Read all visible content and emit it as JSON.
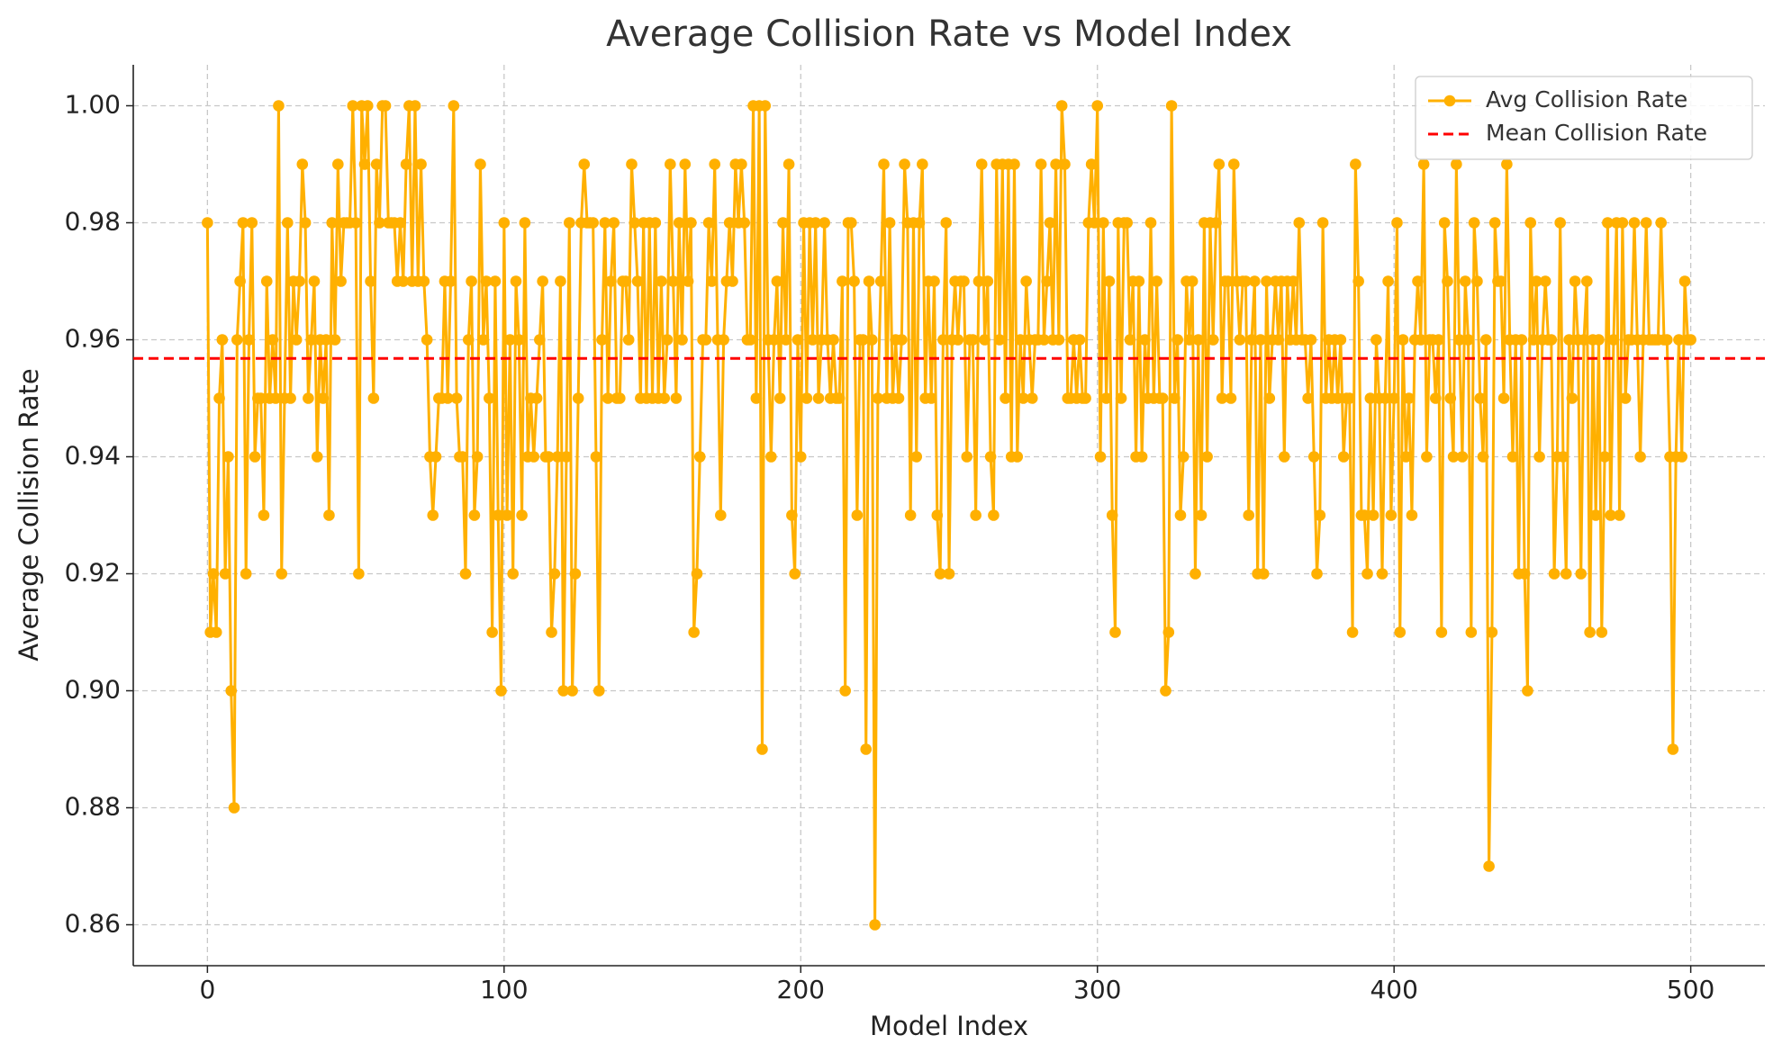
{
  "chart_data": {
    "type": "line",
    "title": "Average Collision Rate vs Model Index",
    "x_label": "Model Index",
    "y_label": "Average Collision Rate",
    "x": [
      0,
      1,
      2,
      3,
      4,
      5,
      6,
      7,
      8,
      9,
      10,
      11,
      12,
      13,
      14,
      15,
      16,
      17,
      18,
      19,
      20,
      21,
      22,
      23,
      24,
      25,
      26,
      27,
      28,
      29,
      30,
      31,
      32,
      33,
      34,
      35,
      36,
      37,
      38,
      39,
      40,
      41,
      42,
      43,
      44,
      45,
      46,
      47,
      48,
      49,
      50,
      51,
      52,
      53,
      54,
      55,
      56,
      57,
      58,
      59,
      60,
      61,
      62,
      63,
      64,
      65,
      66,
      67,
      68,
      69,
      70,
      71,
      72,
      73,
      74,
      75,
      76,
      77,
      78,
      79,
      80,
      81,
      82,
      83,
      84,
      85,
      86,
      87,
      88,
      89,
      90,
      91,
      92,
      93,
      94,
      95,
      96,
      97,
      98,
      99,
      100,
      101,
      102,
      103,
      104,
      105,
      106,
      107,
      108,
      109,
      110,
      111,
      112,
      113,
      114,
      115,
      116,
      117,
      118,
      119,
      120,
      121,
      122,
      123,
      124,
      125,
      126,
      127,
      128,
      129,
      130,
      131,
      132,
      133,
      134,
      135,
      136,
      137,
      138,
      139,
      140,
      141,
      142,
      143,
      144,
      145,
      146,
      147,
      148,
      149,
      150,
      151,
      152,
      153,
      154,
      155,
      156,
      157,
      158,
      159,
      160,
      161,
      162,
      163,
      164,
      165,
      166,
      167,
      168,
      169,
      170,
      171,
      172,
      173,
      174,
      175,
      176,
      177,
      178,
      179,
      180,
      181,
      182,
      183,
      184,
      185,
      186,
      187,
      188,
      189,
      190,
      191,
      192,
      193,
      194,
      195,
      196,
      197,
      198,
      199,
      200,
      201,
      202,
      203,
      204,
      205,
      206,
      207,
      208,
      209,
      210,
      211,
      212,
      213,
      214,
      215,
      216,
      217,
      218,
      219,
      220,
      221,
      222,
      223,
      224,
      225,
      226,
      227,
      228,
      229,
      230,
      231,
      232,
      233,
      234,
      235,
      236,
      237,
      238,
      239,
      240,
      241,
      242,
      243,
      244,
      245,
      246,
      247,
      248,
      249,
      250,
      251,
      252,
      253,
      254,
      255,
      256,
      257,
      258,
      259,
      260,
      261,
      262,
      263,
      264,
      265,
      266,
      267,
      268,
      269,
      270,
      271,
      272,
      273,
      274,
      275,
      276,
      277,
      278,
      279,
      280,
      281,
      282,
      283,
      284,
      285,
      286,
      287,
      288,
      289,
      290,
      291,
      292,
      293,
      294,
      295,
      296,
      297,
      298,
      299,
      300,
      301,
      302,
      303,
      304,
      305,
      306,
      307,
      308,
      309,
      310,
      311,
      312,
      313,
      314,
      315,
      316,
      317,
      318,
      319,
      320,
      321,
      322,
      323,
      324,
      325,
      326,
      327,
      328,
      329,
      330,
      331,
      332,
      333,
      334,
      335,
      336,
      337,
      338,
      339,
      340,
      341,
      342,
      343,
      344,
      345,
      346,
      347,
      348,
      349,
      350,
      351,
      352,
      353,
      354,
      355,
      356,
      357,
      358,
      359,
      360,
      361,
      362,
      363,
      364,
      365,
      366,
      367,
      368,
      369,
      370,
      371,
      372,
      373,
      374,
      375,
      376,
      377,
      378,
      379,
      380,
      381,
      382,
      383,
      384,
      385,
      386,
      387,
      388,
      389,
      390,
      391,
      392,
      393,
      394,
      395,
      396,
      397,
      398,
      399,
      400,
      401,
      402,
      403,
      404,
      405,
      406,
      407,
      408,
      409,
      410,
      411,
      412,
      413,
      414,
      415,
      416,
      417,
      418,
      419,
      420,
      421,
      422,
      423,
      424,
      425,
      426,
      427,
      428,
      429,
      430,
      431,
      432,
      433,
      434,
      435,
      436,
      437,
      438,
      439,
      440,
      441,
      442,
      443,
      444,
      445,
      446,
      447,
      448,
      449,
      450,
      451,
      452,
      453,
      454,
      455,
      456,
      457,
      458,
      459,
      460,
      461,
      462,
      463,
      464,
      465,
      466,
      467,
      468,
      469,
      470,
      471,
      472,
      473,
      474,
      475,
      476,
      477,
      478,
      479,
      480,
      481,
      482,
      483,
      484,
      485,
      486,
      487,
      488,
      489,
      490,
      491,
      492,
      493,
      494,
      495,
      496,
      497,
      498,
      499,
      500
    ],
    "series": [
      {
        "name": "Avg Collision Rate",
        "color": "#ffb000",
        "marker": "circle",
        "values": [
          0.98,
          0.91,
          0.92,
          0.91,
          0.95,
          0.96,
          0.92,
          0.94,
          0.9,
          0.88,
          0.96,
          0.97,
          0.98,
          0.92,
          0.96,
          0.98,
          0.94,
          0.95,
          0.95,
          0.93,
          0.97,
          0.95,
          0.96,
          0.95,
          1,
          0.92,
          0.95,
          0.98,
          0.95,
          0.97,
          0.96,
          0.97,
          0.99,
          0.98,
          0.95,
          0.96,
          0.97,
          0.94,
          0.96,
          0.95,
          0.96,
          0.93,
          0.98,
          0.96,
          0.99,
          0.97,
          0.98,
          0.98,
          0.98,
          1,
          0.98,
          0.92,
          1,
          0.99,
          1,
          0.97,
          0.95,
          0.99,
          0.98,
          1,
          1,
          0.98,
          0.98,
          0.98,
          0.97,
          0.98,
          0.97,
          0.99,
          1,
          0.97,
          1,
          0.97,
          0.99,
          0.97,
          0.96,
          0.94,
          0.93,
          0.94,
          0.95,
          0.95,
          0.97,
          0.95,
          0.97,
          1,
          0.95,
          0.94,
          0.94,
          0.92,
          0.96,
          0.97,
          0.93,
          0.94,
          0.99,
          0.96,
          0.97,
          0.95,
          0.91,
          0.97,
          0.93,
          0.9,
          0.98,
          0.93,
          0.96,
          0.92,
          0.97,
          0.96,
          0.93,
          0.98,
          0.94,
          0.95,
          0.94,
          0.95,
          0.96,
          0.97,
          0.94,
          0.94,
          0.91,
          0.92,
          0.94,
          0.97,
          0.9,
          0.94,
          0.98,
          0.9,
          0.92,
          0.95,
          0.98,
          0.99,
          0.98,
          0.98,
          0.98,
          0.94,
          0.9,
          0.96,
          0.98,
          0.95,
          0.97,
          0.98,
          0.95,
          0.95,
          0.97,
          0.97,
          0.96,
          0.99,
          0.98,
          0.97,
          0.95,
          0.98,
          0.95,
          0.98,
          0.95,
          0.98,
          0.95,
          0.97,
          0.95,
          0.96,
          0.99,
          0.97,
          0.95,
          0.98,
          0.96,
          0.99,
          0.97,
          0.98,
          0.91,
          0.92,
          0.94,
          0.96,
          0.96,
          0.98,
          0.97,
          0.99,
          0.96,
          0.93,
          0.96,
          0.97,
          0.98,
          0.97,
          0.99,
          0.98,
          0.99,
          0.98,
          0.96,
          0.96,
          1,
          0.95,
          1,
          0.89,
          1,
          0.96,
          0.94,
          0.96,
          0.97,
          0.95,
          0.98,
          0.96,
          0.99,
          0.93,
          0.92,
          0.96,
          0.94,
          0.98,
          0.95,
          0.98,
          0.96,
          0.98,
          0.95,
          0.96,
          0.98,
          0.96,
          0.95,
          0.96,
          0.95,
          0.95,
          0.97,
          0.9,
          0.98,
          0.98,
          0.97,
          0.93,
          0.96,
          0.96,
          0.89,
          0.97,
          0.96,
          0.86,
          0.95,
          0.97,
          0.99,
          0.95,
          0.98,
          0.95,
          0.96,
          0.95,
          0.96,
          0.99,
          0.98,
          0.93,
          0.98,
          0.94,
          0.98,
          0.99,
          0.95,
          0.97,
          0.95,
          0.97,
          0.93,
          0.92,
          0.96,
          0.98,
          0.92,
          0.96,
          0.97,
          0.96,
          0.97,
          0.97,
          0.94,
          0.96,
          0.96,
          0.93,
          0.97,
          0.99,
          0.96,
          0.97,
          0.94,
          0.93,
          0.99,
          0.96,
          0.99,
          0.95,
          0.99,
          0.94,
          0.99,
          0.94,
          0.96,
          0.95,
          0.97,
          0.96,
          0.95,
          0.96,
          0.96,
          0.99,
          0.96,
          0.97,
          0.98,
          0.96,
          0.99,
          0.96,
          1,
          0.99,
          0.95,
          0.95,
          0.96,
          0.95,
          0.96,
          0.95,
          0.95,
          0.98,
          0.99,
          0.98,
          1,
          0.94,
          0.98,
          0.95,
          0.97,
          0.93,
          0.91,
          0.98,
          0.95,
          0.98,
          0.98,
          0.96,
          0.97,
          0.94,
          0.97,
          0.94,
          0.96,
          0.95,
          0.98,
          0.95,
          0.97,
          0.95,
          0.95,
          0.9,
          0.91,
          1,
          0.95,
          0.96,
          0.93,
          0.94,
          0.97,
          0.96,
          0.97,
          0.92,
          0.96,
          0.93,
          0.98,
          0.94,
          0.98,
          0.96,
          0.98,
          0.99,
          0.95,
          0.97,
          0.97,
          0.95,
          0.99,
          0.97,
          0.96,
          0.97,
          0.97,
          0.93,
          0.96,
          0.97,
          0.92,
          0.96,
          0.92,
          0.97,
          0.95,
          0.96,
          0.97,
          0.96,
          0.97,
          0.94,
          0.97,
          0.96,
          0.97,
          0.96,
          0.98,
          0.96,
          0.96,
          0.95,
          0.96,
          0.94,
          0.92,
          0.93,
          0.98,
          0.95,
          0.96,
          0.95,
          0.96,
          0.95,
          0.96,
          0.94,
          0.95,
          0.95,
          0.91,
          0.99,
          0.97,
          0.93,
          0.93,
          0.92,
          0.95,
          0.93,
          0.96,
          0.95,
          0.92,
          0.95,
          0.97,
          0.93,
          0.95,
          0.98,
          0.91,
          0.96,
          0.94,
          0.95,
          0.93,
          0.96,
          0.97,
          0.96,
          0.99,
          0.94,
          0.96,
          0.96,
          0.95,
          0.96,
          0.91,
          0.98,
          0.97,
          0.95,
          0.94,
          0.99,
          0.96,
          0.94,
          0.97,
          0.96,
          0.91,
          0.98,
          0.97,
          0.95,
          0.94,
          0.96,
          0.87,
          0.91,
          0.98,
          0.97,
          0.97,
          0.95,
          0.99,
          0.96,
          0.94,
          0.96,
          0.92,
          0.96,
          0.92,
          0.9,
          0.98,
          0.96,
          0.97,
          0.94,
          0.96,
          0.97,
          0.96,
          0.96,
          0.92,
          0.94,
          0.98,
          0.94,
          0.92,
          0.96,
          0.95,
          0.97,
          0.96,
          0.92,
          0.96,
          0.97,
          0.91,
          0.96,
          0.93,
          0.96,
          0.91,
          0.94,
          0.98,
          0.93,
          0.96,
          0.98,
          0.93,
          0.98,
          0.95,
          0.96,
          0.96,
          0.98,
          0.96,
          0.94,
          0.96,
          0.98,
          0.96,
          0.96,
          0.96,
          0.96,
          0.98,
          0.96,
          0.96,
          0.94,
          0.89,
          0.94,
          0.96,
          0.94,
          0.97,
          0.96,
          0.96
        ]
      }
    ],
    "reference_line": {
      "name": "Mean Collision Rate",
      "value": 0.9568,
      "color": "#ff0000",
      "style": "dashed"
    },
    "xlim": [
      -25,
      525
    ],
    "ylim": [
      0.853,
      1.007
    ],
    "xticks": [
      0,
      100,
      200,
      300,
      400,
      500
    ],
    "yticks": [
      0.86,
      0.88,
      {
        "value": 0.9,
        "label": "0.90"
      },
      0.92,
      0.94,
      0.96,
      0.98,
      {
        "value": 1,
        "label": "1.00"
      }
    ],
    "grid": true,
    "legend": "upper right"
  }
}
